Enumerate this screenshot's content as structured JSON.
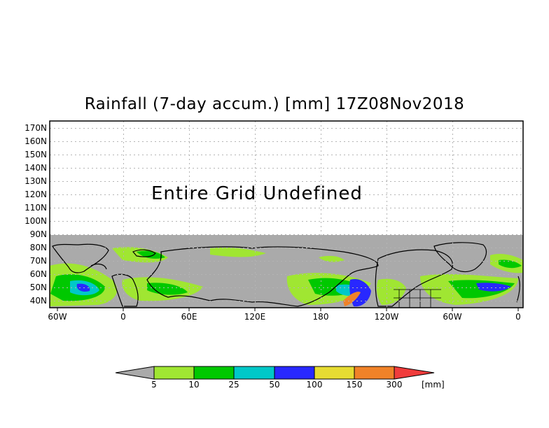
{
  "map": {
    "title": "Rainfall (7-day accum.) [mm] 17Z08Nov2018",
    "overlay_text": "Entire Grid Undefined",
    "lat_labels": [
      "170N",
      "160N",
      "150N",
      "140N",
      "130N",
      "120N",
      "110N",
      "100N",
      "90N",
      "80N",
      "70N",
      "60N",
      "50N",
      "40N"
    ],
    "lon_labels": [
      "60W",
      "0",
      "60E",
      "120E",
      "180",
      "120W",
      "60W",
      "0"
    ],
    "undefined_color": "#aaaaaa",
    "land_outline_color": "#000000"
  },
  "colorbar": {
    "levels": [
      "5",
      "10",
      "25",
      "50",
      "100",
      "150",
      "300"
    ],
    "unit": "[mm]",
    "colors": [
      "#aaaaaa",
      "#a0e632",
      "#00c800",
      "#00c8c8",
      "#2828ff",
      "#e6dc32",
      "#f08228",
      "#f03c3c"
    ]
  }
}
